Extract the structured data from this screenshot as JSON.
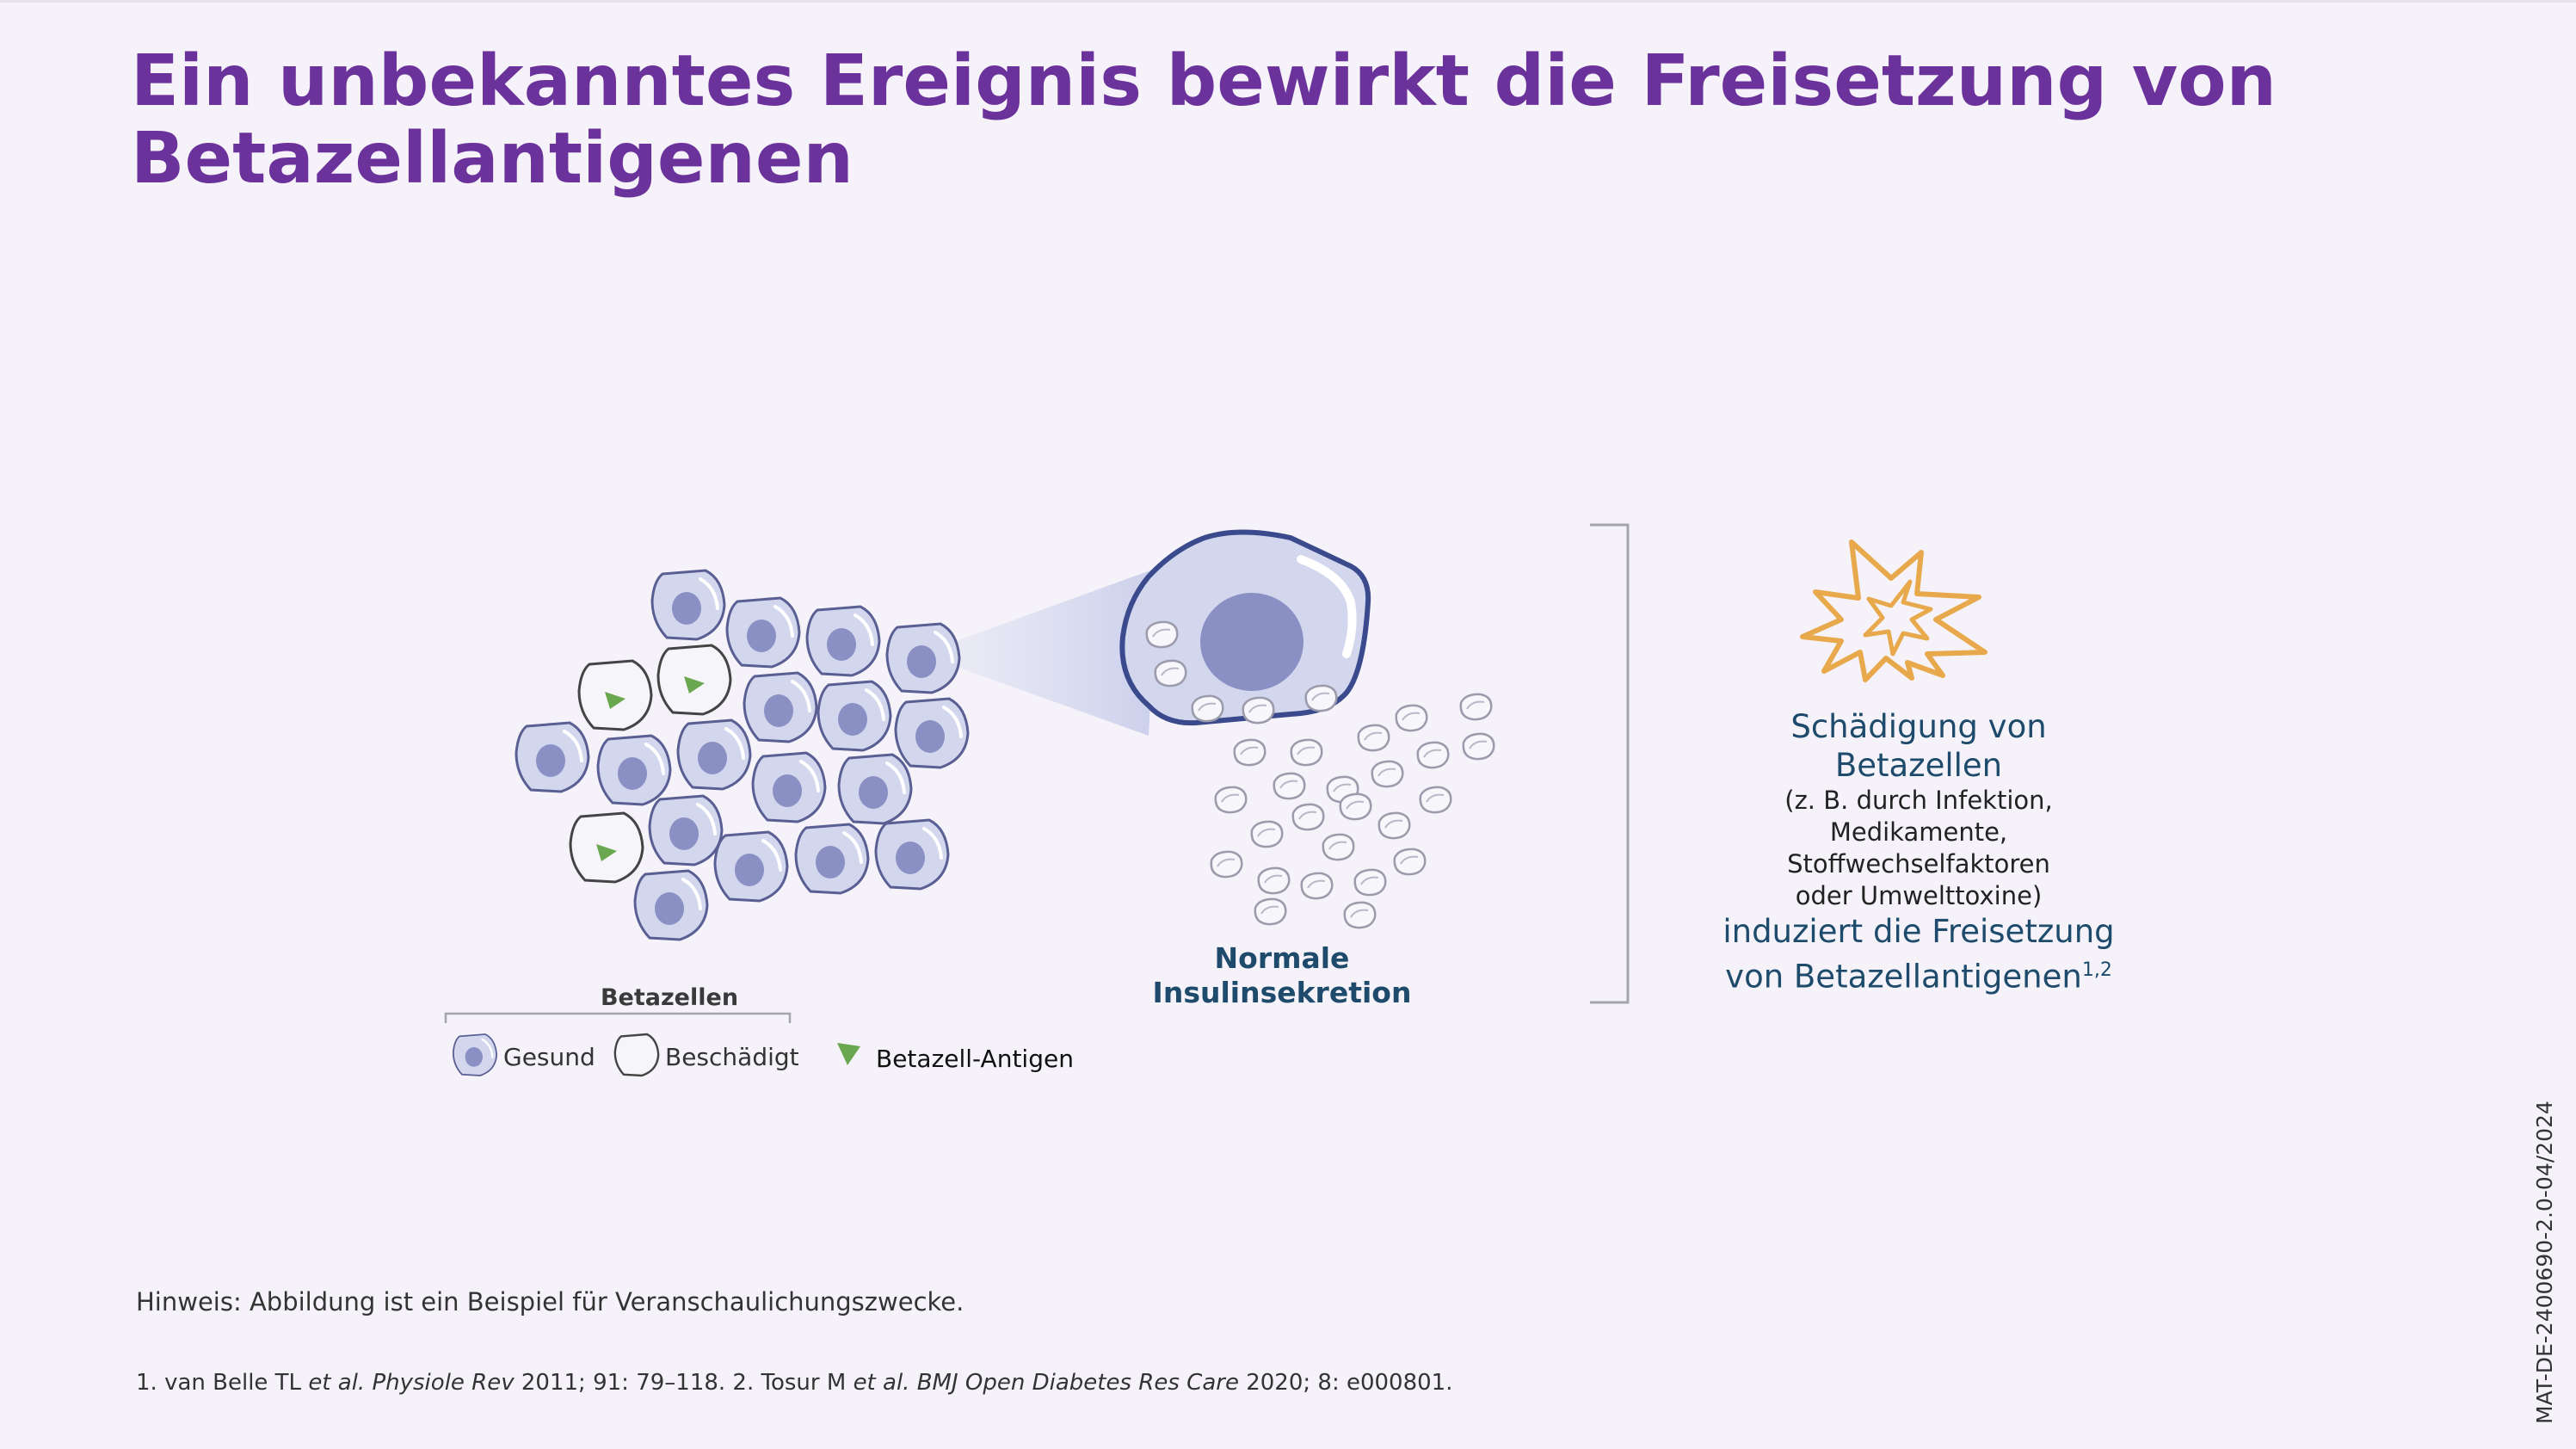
{
  "title": {
    "line1": "Ein unbekanntes Ereignis bewirkt die Freisetzung von",
    "line2": "Betazellantigenen"
  },
  "diagram": {
    "cells_caption": "Betazellen",
    "legend": {
      "healthy": "Gesund",
      "damaged": "Beschädigt",
      "antigen": "Betazell-Antigen"
    },
    "normal_label": {
      "line1": "Normale",
      "line2": "Insulinsekretion"
    },
    "damage_text": {
      "line1": "Schädigung von",
      "line2": "Betazellen",
      "detail1": "(z. B. durch Infektion,",
      "detail2": "Medikamente,",
      "detail3": "Stoffwechselfaktoren",
      "detail4": "oder Umwelttoxine)",
      "line3": "induziert die Freisetzung",
      "line4": "von Betazellantigenen",
      "superscript": "1,2"
    },
    "colors": {
      "cell_fill": "#d3d7ee",
      "cell_stroke": "#5a5f93",
      "nucleus": "#8a8fc4",
      "big_cell_stroke": "#3a4a8c",
      "antigen": "#6aa84f",
      "burst": "#e8a94c",
      "title": "#6b329b",
      "text_blue": "#1e4a6b"
    }
  },
  "footer": {
    "note": "Hinweis: Abbildung ist ein Beispiel für Veranschaulichungszwecke.",
    "refs": {
      "r1": "1. van Belle TL ",
      "r1_etal": "et al.",
      "r1_journal": "Physiole Rev",
      "r1_rest": " 2011; 91: 79–118. 2. Tosur M ",
      "r2_etal": "et al.",
      "r2_journal": "BMJ Open Diabetes Res Care",
      "r2_rest": " 2020; 8: e000801."
    },
    "code": "MAT-DE-2400690-2.0-04/2024"
  }
}
